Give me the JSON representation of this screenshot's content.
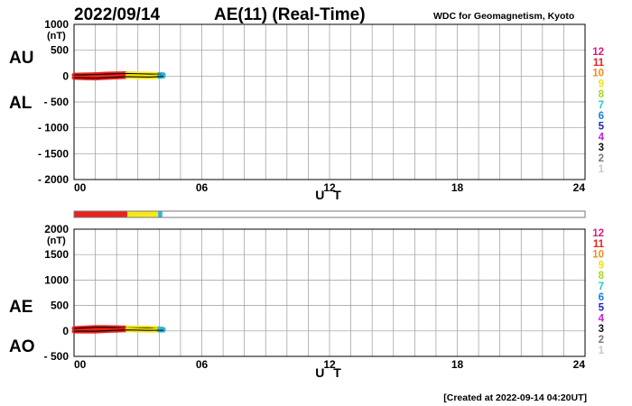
{
  "header": {
    "date": "2022/09/14",
    "title": "AE(11) (Real-Time)",
    "source": "WDC for Geomagnetism, Kyoto"
  },
  "footer": {
    "created": "[Created at 2022-09-14 04:20UT]"
  },
  "colors": {
    "data_red": "#e8241c",
    "data_yellow": "#f7e81b",
    "data_cyan": "#2fb5d6",
    "data_green": "#52c47a",
    "grid": "#9a9a9a"
  },
  "station_legend": [
    {
      "label": "12",
      "color": "#e0177a"
    },
    {
      "label": "11",
      "color": "#e8241c"
    },
    {
      "label": "10",
      "color": "#f28c1a"
    },
    {
      "label": "9",
      "color": "#f2e01b"
    },
    {
      "label": "8",
      "color": "#a6d81e"
    },
    {
      "label": "7",
      "color": "#24c9c9"
    },
    {
      "label": "6",
      "color": "#1b7fe0"
    },
    {
      "label": "5",
      "color": "#2424c9"
    },
    {
      "label": "4",
      "color": "#c51bd1"
    },
    {
      "label": "3",
      "color": "#111111"
    },
    {
      "label": "2",
      "color": "#777777"
    },
    {
      "label": "1",
      "color": "#c8c8c8"
    }
  ],
  "station_bar": [
    {
      "from_ut": 0.0,
      "to_ut": 2.5,
      "color": "#e8241c"
    },
    {
      "from_ut": 2.5,
      "to_ut": 3.95,
      "color": "#f7e81b"
    },
    {
      "from_ut": 3.95,
      "to_ut": 4.15,
      "color": "#2fb5d6"
    },
    {
      "from_ut": 4.15,
      "to_ut": 24.0,
      "color": "#ffffff"
    }
  ],
  "chart_data": [
    {
      "type": "line",
      "ylim": [
        -2000,
        1000
      ],
      "xlim": [
        0,
        24
      ],
      "yticks": [
        "1000",
        "500",
        "0",
        "- 500",
        "- 1000",
        "- 1500",
        "- 2000"
      ],
      "ytick_values": [
        1000,
        500,
        0,
        -500,
        -1000,
        -1500,
        -2000
      ],
      "unit_label": "(nT)",
      "xticks": [
        "00",
        "06",
        "12",
        "18",
        "24"
      ],
      "xtick_values": [
        0,
        6,
        12,
        18,
        24
      ],
      "xlabel": "U T",
      "panel_labels": [
        "AU",
        "AL"
      ],
      "grid": true,
      "series": [
        {
          "name": "AU",
          "x": [
            0.0,
            0.5,
            1.0,
            1.5,
            2.0,
            2.5,
            3.0,
            3.5,
            4.0,
            4.2
          ],
          "y": [
            20,
            25,
            30,
            40,
            45,
            50,
            45,
            40,
            35,
            30
          ]
        },
        {
          "name": "AL",
          "x": [
            0.0,
            0.5,
            1.0,
            1.5,
            2.0,
            2.5,
            3.0,
            3.5,
            4.0,
            4.2
          ],
          "y": [
            -30,
            -35,
            -40,
            -30,
            -20,
            -10,
            -15,
            -20,
            -10,
            -5
          ]
        }
      ]
    },
    {
      "type": "line",
      "ylim": [
        -500,
        2000
      ],
      "xlim": [
        0,
        24
      ],
      "yticks": [
        "2000",
        "1500",
        "1000",
        "500",
        "0",
        "- 500"
      ],
      "ytick_values": [
        2000,
        1500,
        1000,
        500,
        0,
        -500
      ],
      "unit_label": "(nT)",
      "xticks": [
        "00",
        "06",
        "12",
        "18",
        "24"
      ],
      "xtick_values": [
        0,
        6,
        12,
        18,
        24
      ],
      "xlabel": "U T",
      "panel_labels": [
        "AE",
        "AO"
      ],
      "grid": true,
      "series": [
        {
          "name": "AE",
          "x": [
            0.0,
            0.5,
            1.0,
            1.5,
            2.0,
            2.5,
            3.0,
            3.5,
            4.0,
            4.2
          ],
          "y": [
            50,
            60,
            70,
            70,
            65,
            60,
            60,
            60,
            45,
            35
          ]
        },
        {
          "name": "AO",
          "x": [
            0.0,
            0.5,
            1.0,
            1.5,
            2.0,
            2.5,
            3.0,
            3.5,
            4.0,
            4.2
          ],
          "y": [
            -5,
            -5,
            -5,
            5,
            12,
            20,
            15,
            10,
            12,
            12
          ]
        }
      ]
    }
  ]
}
